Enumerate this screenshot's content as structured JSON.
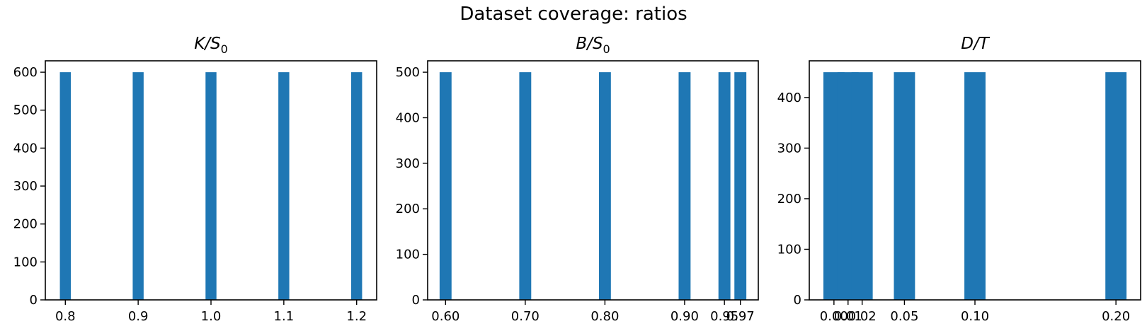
{
  "figure": {
    "title": "Dataset coverage: ratios"
  },
  "chart_data": [
    {
      "type": "bar",
      "title_main": "K/S",
      "title_sub": "0",
      "x_values": [
        0.8,
        0.9,
        1.0,
        1.1,
        1.2
      ],
      "values": [
        600,
        600,
        600,
        600,
        600
      ],
      "bar_width": 0.015,
      "xlim": [
        0.7725,
        1.2275
      ],
      "ylim": [
        0,
        630
      ],
      "xticks": [
        0.8,
        0.9,
        1.0,
        1.1,
        1.2
      ],
      "xtick_labels": [
        "0.8",
        "0.9",
        "1.0",
        "1.1",
        "1.2"
      ],
      "yticks": [
        0,
        100,
        200,
        300,
        400,
        500,
        600
      ],
      "ytick_labels": [
        "0",
        "100",
        "200",
        "300",
        "400",
        "500",
        "600"
      ],
      "color": "#1f77b4"
    },
    {
      "type": "bar",
      "title_main": "B/S",
      "title_sub": "0",
      "x_values": [
        0.6,
        0.7,
        0.8,
        0.9,
        0.95,
        0.97
      ],
      "values": [
        500,
        500,
        500,
        500,
        500,
        500
      ],
      "bar_width": 0.015,
      "xlim": [
        0.5775,
        0.9925
      ],
      "ylim": [
        0,
        525
      ],
      "xticks": [
        0.6,
        0.7,
        0.8,
        0.9,
        0.95,
        0.97
      ],
      "xtick_labels": [
        "0.60",
        "0.70",
        "0.80",
        "0.90",
        "0.95",
        "0.97"
      ],
      "yticks": [
        0,
        100,
        200,
        300,
        400,
        500
      ],
      "ytick_labels": [
        "0",
        "100",
        "200",
        "300",
        "400",
        "500"
      ],
      "color": "#1f77b4"
    },
    {
      "type": "bar",
      "title_main": "D/T",
      "title_sub": "",
      "x_values": [
        0.0,
        0.01,
        0.02,
        0.05,
        0.1,
        0.2
      ],
      "values": [
        450,
        450,
        450,
        450,
        450,
        450
      ],
      "bar_width": 0.015,
      "xlim": [
        -0.0175,
        0.2175
      ],
      "ylim": [
        0,
        472.5
      ],
      "xticks": [
        0.0,
        0.01,
        0.02,
        0.05,
        0.1,
        0.2
      ],
      "xtick_labels": [
        "0.00",
        "0.01",
        "0.02",
        "0.05",
        "0.10",
        "0.20"
      ],
      "yticks": [
        0,
        100,
        200,
        300,
        400
      ],
      "ytick_labels": [
        "0",
        "100",
        "200",
        "300",
        "400"
      ],
      "color": "#1f77b4"
    }
  ]
}
